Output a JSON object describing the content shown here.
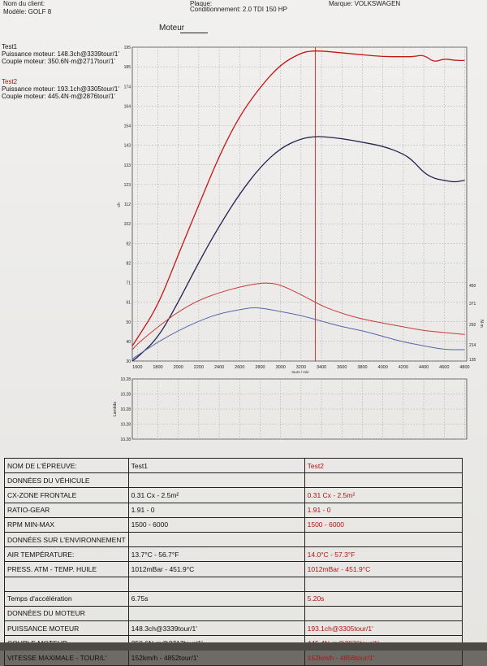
{
  "header": {
    "client_label": "Nom du client:",
    "model": "Modèle: GOLF 8",
    "plate_label": "Plaque:",
    "condition": "Conditionnement: 2.0 TDI 150 HP",
    "brand": "Marque: VOLKSWAGEN"
  },
  "legend": {
    "test1": {
      "name": "Test1",
      "power": "Puissance moteur: 148.3ch@3339tour/1'",
      "torque": "Couple moteur: 350.6N·m@2717tour/1'"
    },
    "test2": {
      "name": "Test2",
      "power": "Puissance moteur: 193.1ch@3305tour/1'",
      "torque": "Couple moteur: 445.4N·m@2876tour/1'"
    }
  },
  "chart_title": "Moteur",
  "colors": {
    "test1": "#23234f",
    "test2": "#c41818",
    "test1_torque": "#5566aa",
    "test2_torque": "#c63a3a"
  },
  "chart_data": {
    "type": "line",
    "xlabel": "tours / min",
    "ylabel_left": "ch",
    "ylabel_right": "N·m",
    "x_ticks": [
      "1600",
      "1800",
      "2000",
      "2200",
      "2400",
      "2600",
      "2800",
      "3000",
      "3200",
      "3400",
      "3600",
      "3800",
      "4000",
      "4200",
      "4400",
      "4600",
      "4800"
    ],
    "y_left_ticks": [
      "30",
      "40",
      "50",
      "61",
      "71",
      "82",
      "92",
      "102",
      "112",
      "123",
      "133",
      "143",
      "154",
      "164",
      "174",
      "185",
      "195"
    ],
    "y_right_ticks": [
      "135",
      "214",
      "292",
      "371",
      "450"
    ],
    "xlim": [
      1550,
      4820
    ],
    "ylim": [
      30,
      195
    ],
    "vertical_marker_x": 3339,
    "series": [
      {
        "name": "Test2",
        "kind": "power",
        "x": [
          1550,
          1600,
          1800,
          2000,
          2200,
          2400,
          2600,
          2800,
          3000,
          3200,
          3300,
          3400,
          3600,
          3800,
          4000,
          4200,
          4300,
          4400,
          4500,
          4600,
          4700,
          4800
        ],
        "values": [
          38,
          42,
          59,
          86,
          112,
          138,
          159,
          174,
          186,
          192,
          193,
          193,
          192,
          191,
          190,
          190,
          190,
          191,
          187,
          189,
          188,
          188
        ]
      },
      {
        "name": "Test1",
        "kind": "power",
        "x": [
          1550,
          1600,
          1800,
          2000,
          2200,
          2400,
          2600,
          2800,
          3000,
          3200,
          3339,
          3400,
          3600,
          3800,
          4000,
          4200,
          4300,
          4400,
          4500,
          4600,
          4700,
          4800
        ],
        "values": [
          30,
          32,
          42,
          61,
          82,
          101,
          118,
          132,
          142,
          147,
          148,
          148,
          147,
          145,
          143,
          139,
          135,
          129,
          126,
          125,
          124,
          125
        ]
      },
      {
        "name": "Test2",
        "kind": "torque",
        "x": [
          1550,
          1600,
          1800,
          2000,
          2200,
          2400,
          2600,
          2800,
          2900,
          3000,
          3200,
          3400,
          3600,
          3800,
          4000,
          4200,
          4400,
          4600,
          4800
        ],
        "values": [
          36,
          39,
          48,
          56,
          62,
          66,
          69,
          71,
          71,
          70,
          65,
          59,
          55,
          52,
          50,
          48,
          46,
          45,
          44
        ]
      },
      {
        "name": "Test1",
        "kind": "torque",
        "x": [
          1550,
          1600,
          1800,
          2000,
          2200,
          2400,
          2600,
          2700,
          2800,
          3000,
          3200,
          3400,
          3600,
          3800,
          4000,
          4200,
          4400,
          4600,
          4800
        ],
        "values": [
          31,
          33,
          40,
          46,
          51,
          55,
          57,
          58,
          58,
          56,
          54,
          51,
          48,
          46,
          43,
          40,
          38,
          36,
          36
        ]
      }
    ],
    "lambda_ticks": [
      "10.28",
      "10.28",
      "10.28",
      "10.28",
      "10.28"
    ],
    "lambda_label": "Lambda"
  },
  "table": {
    "rows": [
      {
        "label": "NOM DE L'ÉPREUVE:",
        "t1": "Test1",
        "t2": "Test2"
      },
      {
        "label": "DONNÉES DU VÉHICULE",
        "t1": "",
        "t2": ""
      },
      {
        "label": "CX-ZONE FRONTALE",
        "t1": "0.31 Cx - 2.5m²",
        "t2": "0.31 Cx - 2.5m²"
      },
      {
        "label": "RATIO-GEAR",
        "t1": "1.91 - 0",
        "t2": "1.91 - 0"
      },
      {
        "label": "RPM MIN-MAX",
        "t1": "1500 - 6000",
        "t2": "1500 - 6000"
      },
      {
        "label": "DONNÉES SUR L'ENVIRONNEMENT",
        "t1": "",
        "t2": ""
      },
      {
        "label": "AIR TEMPÉRATURE:",
        "t1": "13.7°C - 56.7°F",
        "t2": "14.0°C - 57.3°F"
      },
      {
        "label": "PRESS. ATM - TEMP. HUILE",
        "t1": "1012mBar - 451.9°C",
        "t2": "1012mBar - 451.9°C"
      },
      {
        "label": "",
        "t1": "",
        "t2": ""
      },
      {
        "label": "Temps d'accélération",
        "t1": "6.75s",
        "t2": "5.20s"
      },
      {
        "label": "DONNÉES DU MOTEUR",
        "t1": "",
        "t2": ""
      },
      {
        "label": "PUISSANCE MOTEUR",
        "t1": "148.3ch@3339tour/1'",
        "t2": "193.1ch@3305tour/1'"
      },
      {
        "label": "COUPLE MOTEUR",
        "t1": "350.6N·m@2717tour/1'",
        "t2": "445.4N·m@2876tour/1'"
      },
      {
        "label": "VITESSE MAXIMALE - TOUR/L'",
        "t1": "152km/h - 4852tour/1'",
        "t2": "152km/h - 4856tour/1'"
      }
    ]
  }
}
